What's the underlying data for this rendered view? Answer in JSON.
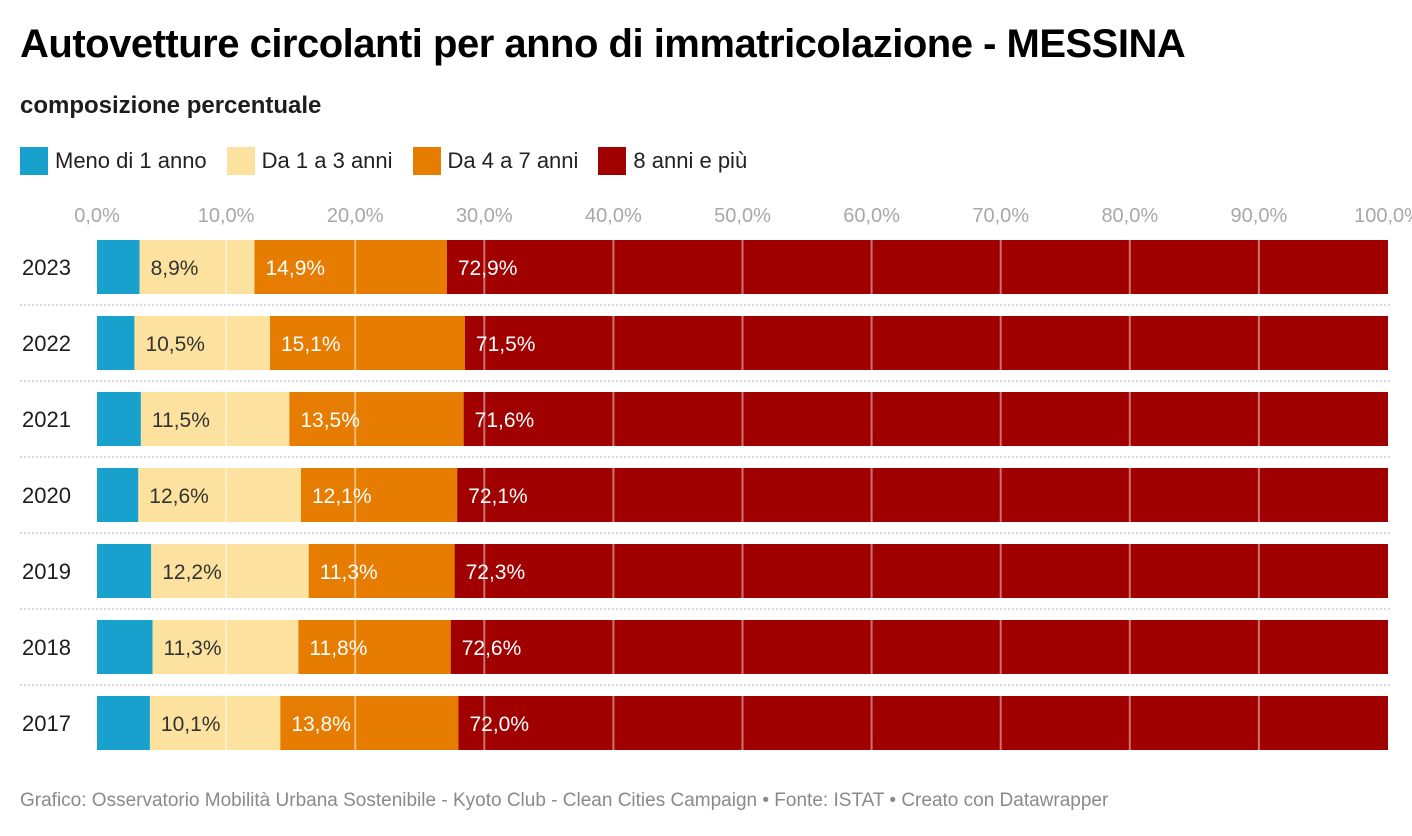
{
  "header": {
    "title": "Autovetture circolanti per anno di immatricolazione - MESSINA",
    "subtitle": "composizione percentuale"
  },
  "footer": {
    "credit": "Grafico: Osservatorio Mobilità Urbana Sostenibile - Kyoto Club - Clean Cities Campaign • Fonte: ISTAT • Creato con Datawrapper"
  },
  "chart_data": {
    "type": "bar",
    "orientation": "horizontal",
    "stacked": true,
    "title": "Autovetture circolanti per anno di immatricolazione - MESSINA",
    "subtitle": "composizione percentuale",
    "xlabel": "",
    "ylabel": "",
    "xlim": [
      0,
      100
    ],
    "x_ticks": [
      "0,0%",
      "10,0%",
      "20,0%",
      "30,0%",
      "40,0%",
      "50,0%",
      "60,0%",
      "70,0%",
      "80,0%",
      "90,0%",
      "100,0%"
    ],
    "x_tick_values": [
      0,
      10,
      20,
      30,
      40,
      50,
      60,
      70,
      80,
      90,
      100
    ],
    "grid": true,
    "legend_position": "top-left",
    "categories": [
      "2023",
      "2022",
      "2021",
      "2020",
      "2019",
      "2018",
      "2017"
    ],
    "series": [
      {
        "name": "Meno di 1 anno",
        "color": "#18a1cd",
        "label_color": "#333333",
        "show_labels": false,
        "values": [
          3.3,
          2.9,
          3.4,
          3.2,
          4.2,
          4.3,
          4.1
        ]
      },
      {
        "name": "Da 1 a 3 anni",
        "color": "#fce29e",
        "label_color": "#333333",
        "show_labels": true,
        "values": [
          8.9,
          10.5,
          11.5,
          12.6,
          12.2,
          11.3,
          10.1
        ]
      },
      {
        "name": "Da 4 a 7 anni",
        "color": "#e67c00",
        "label_color": "#ffffff",
        "show_labels": true,
        "values": [
          14.9,
          15.1,
          13.5,
          12.1,
          11.3,
          11.8,
          13.8
        ]
      },
      {
        "name": "8 anni e più",
        "color": "#a00000",
        "label_color": "#ffffff",
        "show_labels": true,
        "values": [
          72.9,
          71.5,
          71.6,
          72.1,
          72.3,
          72.6,
          72.0
        ]
      }
    ],
    "data_labels": [
      [
        "",
        "8,9%",
        "14,9%",
        "72,9%"
      ],
      [
        "",
        "10,5%",
        "15,1%",
        "71,5%"
      ],
      [
        "",
        "11,5%",
        "13,5%",
        "71,6%"
      ],
      [
        "",
        "12,6%",
        "12,1%",
        "72,1%"
      ],
      [
        "",
        "12,2%",
        "11,3%",
        "72,3%"
      ],
      [
        "",
        "11,3%",
        "11,8%",
        "72,6%"
      ],
      [
        "",
        "10,1%",
        "13,8%",
        "72,0%"
      ]
    ]
  }
}
